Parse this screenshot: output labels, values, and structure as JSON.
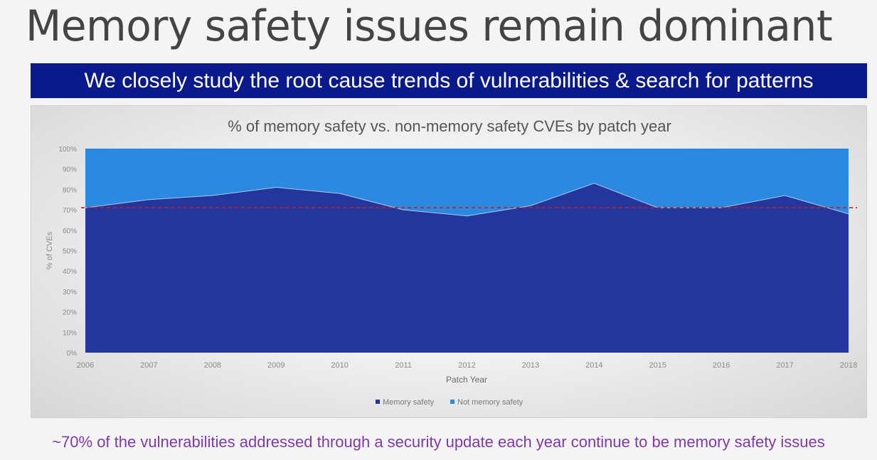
{
  "slide": {
    "title": "Memory safety issues remain dominant",
    "banner": "We closely study the root cause trends of vulnerabilities & search for patterns",
    "footer": "~70% of the vulnerabilities addressed through a security update each year continue to be memory safety issues"
  },
  "colors": {
    "banner_bg": "#0a1a8c",
    "memory_safety": "#24359c",
    "not_memory_safety": "#2b8ae0",
    "reference_line": "#c0201c",
    "footer_text": "#7e3aa6"
  },
  "chart_data": {
    "type": "area",
    "stacked": true,
    "percent": true,
    "title": "% of memory safety vs. non-memory safety CVEs by patch year",
    "xlabel": "Patch Year",
    "ylabel": "% of CVEs",
    "categories": [
      "2006",
      "2007",
      "2008",
      "2009",
      "2010",
      "2011",
      "2012",
      "2013",
      "2014",
      "2015",
      "2016",
      "2017",
      "2018"
    ],
    "y_ticks": [
      "0%",
      "10%",
      "20%",
      "30%",
      "40%",
      "50%",
      "60%",
      "70%",
      "80%",
      "90%",
      "100%"
    ],
    "ylim": [
      0,
      100
    ],
    "series": [
      {
        "name": "Memory safety",
        "values": [
          71,
          75,
          77,
          81,
          78,
          70,
          67,
          72,
          83,
          71,
          71,
          77,
          68
        ]
      },
      {
        "name": "Not memory safety",
        "values": [
          29,
          25,
          23,
          19,
          22,
          30,
          33,
          28,
          17,
          29,
          29,
          23,
          32
        ]
      }
    ],
    "reference_line": {
      "y": 71,
      "style": "dashed"
    },
    "legend_position": "bottom",
    "grid": false
  }
}
